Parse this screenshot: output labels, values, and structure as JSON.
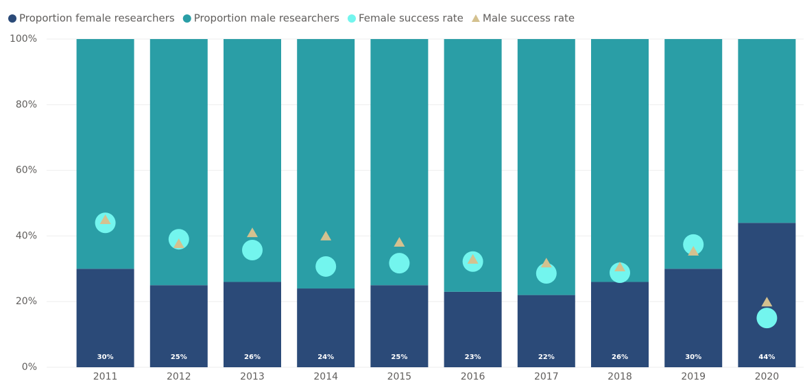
{
  "chart_data": {
    "type": "bar",
    "stacked": true,
    "categories": [
      "2011",
      "2012",
      "2013",
      "2014",
      "2015",
      "2016",
      "2017",
      "2018",
      "2019",
      "2020"
    ],
    "series": [
      {
        "name": "Proportion female researchers",
        "color": "#2b4a78",
        "type": "bar",
        "values": [
          30,
          25,
          26,
          24,
          25,
          23,
          22,
          26,
          30,
          44
        ],
        "value_labels": [
          "30%",
          "25%",
          "26%",
          "24%",
          "25%",
          "23%",
          "22%",
          "26%",
          "30%",
          "44%"
        ]
      },
      {
        "name": "Proportion male researchers",
        "color": "#2a9ea6",
        "type": "bar",
        "values": [
          70,
          75,
          74,
          76,
          75,
          77,
          78,
          74,
          70,
          56
        ]
      },
      {
        "name": "Female success rate",
        "color": "#73f5ee",
        "type": "scatter",
        "marker": "circle",
        "values": [
          44,
          39,
          35.7,
          30.7,
          31.7,
          32.2,
          28.6,
          28.8,
          37.4,
          15
        ]
      },
      {
        "name": "Male success rate",
        "color": "#d4c18f",
        "type": "scatter",
        "marker": "triangle",
        "values": [
          45.1,
          37.8,
          41.1,
          40.1,
          38.2,
          33,
          31.9,
          30.7,
          35.5,
          20
        ]
      }
    ],
    "ylim": [
      0,
      100
    ],
    "yticks": [
      {
        "value": 0,
        "label": "0%"
      },
      {
        "value": 20,
        "label": "20%"
      },
      {
        "value": 40,
        "label": "40%"
      },
      {
        "value": 60,
        "label": "60%"
      },
      {
        "value": 80,
        "label": "80%"
      },
      {
        "value": 100,
        "label": "100%"
      }
    ],
    "grid": true,
    "legend": "top-left"
  }
}
